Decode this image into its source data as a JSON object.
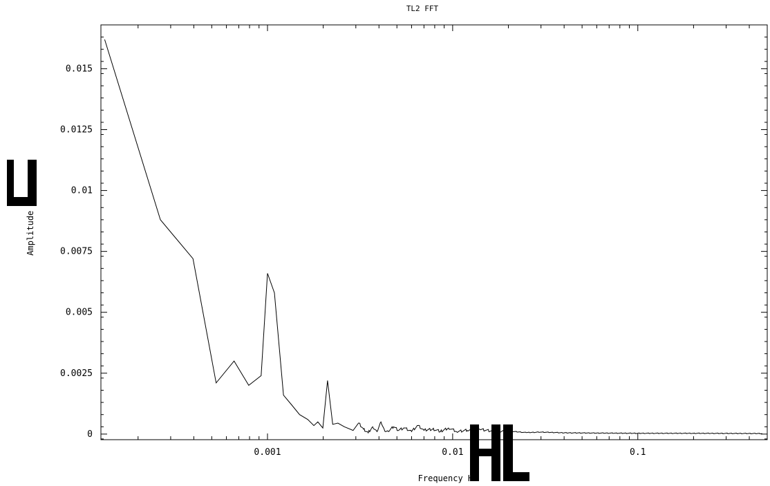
{
  "chart_data": {
    "type": "line",
    "title": "TL2  FFT",
    "xlabel": "Frequency   Hz",
    "ylabel": "Amplitude  V",
    "xscale": "log",
    "xlim": [
      0.000126,
      0.5
    ],
    "ylim": [
      -0.00023,
      0.0168
    ],
    "grid": false,
    "legend": "none",
    "colors": {
      "line": "#000000",
      "axes": "#000000",
      "background": "#ffffff"
    },
    "xticks": [
      {
        "value": 0.001,
        "label": "0.001"
      },
      {
        "value": 0.01,
        "label": "0.01"
      },
      {
        "value": 0.1,
        "label": "0.1"
      }
    ],
    "yticks": [
      {
        "value": 0,
        "label": "0"
      },
      {
        "value": 0.0025,
        "label": "0.0025"
      },
      {
        "value": 0.005,
        "label": "0.005"
      },
      {
        "value": 0.0075,
        "label": "0.0075"
      },
      {
        "value": 0.01,
        "label": "0.01"
      },
      {
        "value": 0.0125,
        "label": "0.0125"
      },
      {
        "value": 0.015,
        "label": "0.015"
      }
    ],
    "series": [
      {
        "x": [
          0.000132,
          0.000264,
          0.000396,
          0.000528,
          0.00066,
          0.000792,
          0.000924,
          0.001,
          0.00109,
          0.00122,
          0.00135,
          0.00149,
          0.00165,
          0.00178,
          0.00187,
          0.00199,
          0.00211,
          0.00225,
          0.0024,
          0.0026,
          0.0029,
          0.0031,
          0.0033,
          0.0035,
          0.0037,
          0.0039,
          0.0041,
          0.0043,
          0.0045,
          0.0048,
          0.0051,
          0.0055,
          0.006,
          0.0065,
          0.007,
          0.0078,
          0.0086,
          0.0095,
          0.0105,
          0.012,
          0.014,
          0.017,
          0.02,
          0.025,
          0.03,
          0.04,
          0.06,
          0.1,
          0.2,
          0.47
        ],
        "y": [
          0.0162,
          0.0088,
          0.0072,
          0.0021,
          0.003,
          0.002,
          0.0024,
          0.0066,
          0.0058,
          0.0016,
          0.0012,
          0.0008,
          0.0006,
          0.00035,
          0.0005,
          0.00025,
          0.0022,
          0.0004,
          0.00045,
          0.0003,
          0.00015,
          0.00045,
          0.0002,
          5e-05,
          0.0003,
          0.0001,
          0.0005,
          0.00012,
          0.0001,
          0.0003,
          0.00015,
          0.00025,
          0.0001,
          0.00035,
          0.00015,
          0.0002,
          0.0001,
          0.00025,
          0.0001,
          0.00015,
          0.0002,
          8e-05,
          0.00012,
          6e-05,
          8e-05,
          5e-05,
          4e-05,
          3e-05,
          3e-05,
          2e-05
        ]
      }
    ]
  }
}
